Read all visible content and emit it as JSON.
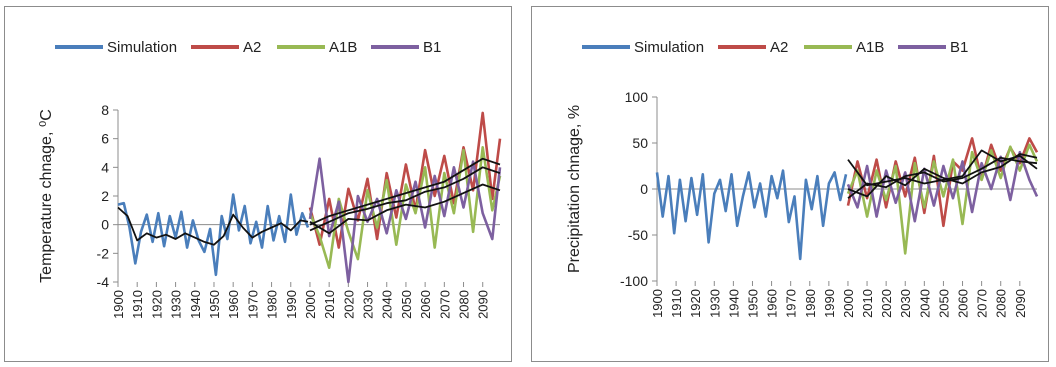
{
  "chart_data": [
    {
      "type": "line",
      "title": "",
      "xlabel": "",
      "ylabel": "Temperature chnage, ⁰C",
      "ylim": [
        -4,
        8
      ],
      "yticks": [
        -4,
        -2,
        0,
        2,
        4,
        6,
        8
      ],
      "xlim": [
        1900,
        2099
      ],
      "xticks": [
        1900,
        1910,
        1920,
        1930,
        1940,
        1950,
        1960,
        1970,
        1980,
        1990,
        2000,
        2010,
        2020,
        2030,
        2040,
        2050,
        2060,
        2070,
        2080,
        2090
      ],
      "legend_position": "top",
      "series": [
        {
          "name": "Simulation",
          "color": "#4a7ebb",
          "x": [
            1900,
            1903,
            1906,
            1909,
            1912,
            1915,
            1918,
            1921,
            1924,
            1927,
            1930,
            1933,
            1936,
            1939,
            1942,
            1945,
            1948,
            1951,
            1954,
            1957,
            1960,
            1963,
            1966,
            1969,
            1972,
            1975,
            1978,
            1981,
            1984,
            1987,
            1990,
            1993,
            1996,
            1999
          ],
          "y": [
            1.4,
            1.5,
            -0.2,
            -2.7,
            -0.5,
            0.7,
            -1.2,
            0.8,
            -1.5,
            0.6,
            -0.9,
            0.9,
            -1.6,
            0.3,
            -1.1,
            -1.9,
            -0.3,
            -3.5,
            0.6,
            -1.0,
            2.1,
            -0.4,
            1.3,
            -1.3,
            0.2,
            -1.6,
            1.3,
            -1.1,
            0.6,
            -1.2,
            2.1,
            -0.7,
            0.8,
            -0.2
          ]
        },
        {
          "name": "A2",
          "color": "#be4b48",
          "x": [
            2000,
            2005,
            2010,
            2015,
            2020,
            2025,
            2030,
            2035,
            2040,
            2045,
            2050,
            2055,
            2060,
            2065,
            2070,
            2075,
            2080,
            2085,
            2090,
            2095,
            2099
          ],
          "y": [
            1.2,
            -1.4,
            1.8,
            -1.6,
            2.5,
            0.3,
            3.2,
            -1.0,
            3.6,
            0.5,
            4.2,
            1.0,
            5.2,
            2.0,
            4.8,
            1.5,
            5.4,
            2.4,
            7.8,
            1.8,
            6.0
          ]
        },
        {
          "name": "A1B",
          "color": "#98b954",
          "x": [
            2000,
            2005,
            2010,
            2015,
            2020,
            2025,
            2030,
            2035,
            2040,
            2045,
            2050,
            2055,
            2060,
            2065,
            2070,
            2075,
            2080,
            2085,
            2090,
            2095,
            2099
          ],
          "y": [
            0.8,
            -0.8,
            -3.0,
            1.8,
            -0.5,
            -2.4,
            2.4,
            -0.2,
            3.1,
            -1.4,
            2.8,
            0.8,
            4.0,
            -1.6,
            3.6,
            0.8,
            5.2,
            -0.5,
            5.4,
            1.0,
            3.4
          ]
        },
        {
          "name": "B1",
          "color": "#7d60a0",
          "x": [
            2000,
            2005,
            2010,
            2015,
            2020,
            2025,
            2030,
            2035,
            2040,
            2045,
            2050,
            2055,
            2060,
            2065,
            2070,
            2075,
            2080,
            2085,
            2090,
            2095,
            2099
          ],
          "y": [
            0.4,
            4.6,
            -0.8,
            1.6,
            -4.0,
            2.0,
            0.2,
            1.8,
            -0.6,
            2.4,
            0.4,
            3.0,
            -0.2,
            3.4,
            0.6,
            4.0,
            1.2,
            4.4,
            0.8,
            -1.0,
            4.0
          ]
        },
        {
          "name": "",
          "color": "#111111",
          "x": [
            1900,
            1905,
            1910,
            1915,
            1920,
            1925,
            1930,
            1935,
            1940,
            1945,
            1950,
            1955,
            1960,
            1965,
            1970,
            1975,
            1980,
            1985,
            1990,
            1995,
            1999
          ],
          "y": [
            1.2,
            0.6,
            -1.1,
            -0.6,
            -0.9,
            -0.7,
            -1.0,
            -0.6,
            -0.9,
            -1.2,
            -1.4,
            -0.8,
            0.7,
            -0.2,
            -0.9,
            -0.5,
            -0.2,
            0.1,
            -0.4,
            0.3,
            0.2
          ]
        },
        {
          "name": "",
          "color": "#111111",
          "x": [
            2000,
            2010,
            2020,
            2030,
            2040,
            2050,
            2060,
            2070,
            2080,
            2090,
            2099
          ],
          "y": [
            0.0,
            0.6,
            1.0,
            1.4,
            1.8,
            2.2,
            2.6,
            3.0,
            3.8,
            4.6,
            4.2
          ]
        },
        {
          "name": "",
          "color": "#111111",
          "x": [
            2000,
            2010,
            2020,
            2030,
            2040,
            2050,
            2060,
            2070,
            2080,
            2090,
            2099
          ],
          "y": [
            -0.4,
            0.2,
            0.8,
            1.1,
            1.5,
            1.7,
            2.3,
            2.6,
            3.2,
            4.0,
            3.6
          ]
        },
        {
          "name": "",
          "color": "#111111",
          "x": [
            2000,
            2010,
            2020,
            2030,
            2040,
            2050,
            2060,
            2070,
            2080,
            2090,
            2099
          ],
          "y": [
            0.2,
            -0.6,
            0.4,
            0.3,
            1.0,
            1.4,
            1.2,
            1.6,
            2.2,
            2.8,
            2.4
          ]
        }
      ]
    },
    {
      "type": "line",
      "title": "",
      "xlabel": "",
      "ylabel": "Precipitation chnage, %",
      "ylim": [
        -100,
        100
      ],
      "yticks": [
        -100,
        -50,
        0,
        50,
        100
      ],
      "xlim": [
        1900,
        2099
      ],
      "xticks": [
        1900,
        1910,
        1920,
        1930,
        1940,
        1950,
        1960,
        1970,
        1980,
        1990,
        2000,
        2010,
        2020,
        2030,
        2040,
        2050,
        2060,
        2070,
        2080,
        2090
      ],
      "legend_position": "top",
      "series": [
        {
          "name": "Simulation",
          "color": "#4a7ebb",
          "x": [
            1900,
            1903,
            1906,
            1909,
            1912,
            1915,
            1918,
            1921,
            1924,
            1927,
            1930,
            1933,
            1936,
            1939,
            1942,
            1945,
            1948,
            1951,
            1954,
            1957,
            1960,
            1963,
            1966,
            1969,
            1972,
            1975,
            1978,
            1981,
            1984,
            1987,
            1990,
            1993,
            1996,
            1999
          ],
          "y": [
            18,
            -30,
            14,
            -48,
            10,
            -35,
            12,
            -28,
            16,
            -58,
            -5,
            10,
            -24,
            16,
            -40,
            -8,
            18,
            -20,
            6,
            -30,
            14,
            -10,
            20,
            -36,
            -8,
            -76,
            10,
            -22,
            14,
            -40,
            6,
            18,
            -12,
            16
          ]
        },
        {
          "name": "A2",
          "color": "#be4b48",
          "x": [
            2000,
            2005,
            2010,
            2015,
            2020,
            2025,
            2030,
            2035,
            2040,
            2045,
            2050,
            2055,
            2060,
            2065,
            2070,
            2075,
            2080,
            2085,
            2090,
            2095,
            2099
          ],
          "y": [
            -18,
            30,
            -10,
            32,
            -20,
            30,
            -8,
            34,
            -26,
            36,
            -40,
            30,
            20,
            55,
            10,
            48,
            20,
            45,
            28,
            55,
            40
          ]
        },
        {
          "name": "A1B",
          "color": "#98b954",
          "x": [
            2000,
            2005,
            2010,
            2015,
            2020,
            2025,
            2030,
            2035,
            2040,
            2045,
            2050,
            2055,
            2060,
            2065,
            2070,
            2075,
            2080,
            2085,
            2090,
            2095,
            2099
          ],
          "y": [
            -5,
            20,
            -30,
            20,
            -12,
            25,
            -70,
            28,
            -20,
            30,
            -8,
            32,
            -38,
            40,
            10,
            42,
            12,
            46,
            20,
            48,
            30
          ]
        },
        {
          "name": "B1",
          "color": "#7d60a0",
          "x": [
            2000,
            2005,
            2010,
            2015,
            2020,
            2025,
            2030,
            2035,
            2040,
            2045,
            2050,
            2055,
            2060,
            2065,
            2070,
            2075,
            2080,
            2085,
            2090,
            2095,
            2099
          ],
          "y": [
            5,
            -20,
            25,
            -30,
            20,
            -15,
            18,
            -35,
            22,
            -18,
            25,
            -10,
            30,
            -25,
            28,
            0,
            35,
            -12,
            40,
            10,
            -8
          ]
        },
        {
          "name": "",
          "color": "#111111",
          "x": [
            2000,
            2010,
            2020,
            2030,
            2040,
            2050,
            2060,
            2070,
            2080,
            2090,
            2099
          ],
          "y": [
            32,
            4,
            8,
            12,
            6,
            10,
            14,
            42,
            30,
            36,
            22
          ]
        },
        {
          "name": "",
          "color": "#111111",
          "x": [
            2000,
            2010,
            2020,
            2030,
            2040,
            2050,
            2060,
            2070,
            2080,
            2090,
            2099
          ],
          "y": [
            -10,
            6,
            2,
            14,
            18,
            8,
            12,
            22,
            34,
            30,
            28
          ]
        },
        {
          "name": "",
          "color": "#111111",
          "x": [
            2000,
            2010,
            2020,
            2030,
            2040,
            2050,
            2060,
            2070,
            2080,
            2090,
            2099
          ],
          "y": [
            0,
            -8,
            14,
            4,
            22,
            12,
            6,
            18,
            24,
            38,
            34
          ]
        }
      ]
    }
  ]
}
